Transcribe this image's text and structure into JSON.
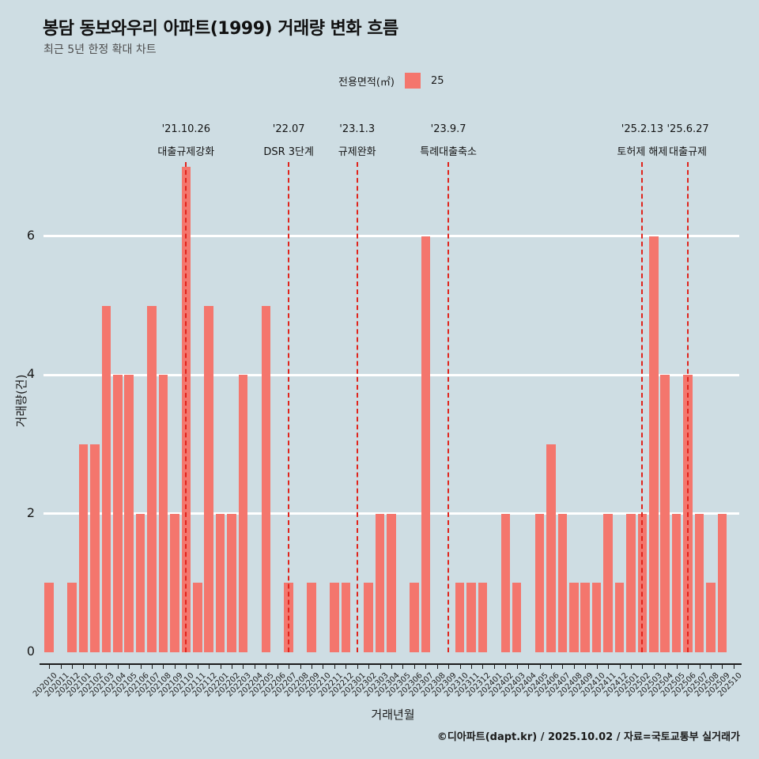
{
  "title": "봉담 동보와우리 아파트(1999) 거래량 변화 흐름",
  "subtitle": "최근 5년 한정 확대 차트",
  "legend": {
    "title": "전용면적(㎡)",
    "items": [
      {
        "label": "25",
        "color": "#f4766d"
      }
    ]
  },
  "footer": "©디아파트(dapt.kr) / 2025.10.02 / 자료=국토교통부 실거래가",
  "colors": {
    "background": "#cedde3",
    "bar": "#f4766d",
    "grid": "#ffffff",
    "annotation_line": "#e0241c",
    "axis": "#1c1c1c"
  },
  "chart_data": {
    "type": "bar",
    "title": "봉담 동보와우리 아파트(1999) 거래량 변화 흐름",
    "xlabel": "거래년월",
    "ylabel": "거래량(건)",
    "ylim": [
      0,
      7.1
    ],
    "yticks": [
      0,
      2,
      4,
      6
    ],
    "grid": true,
    "legend_position": "top",
    "series_name": "25",
    "categories": [
      "202010",
      "202011",
      "202012",
      "202101",
      "202102",
      "202103",
      "202104",
      "202105",
      "202106",
      "202107",
      "202108",
      "202109",
      "202110",
      "202111",
      "202112",
      "202201",
      "202202",
      "202203",
      "202204",
      "202205",
      "202206",
      "202207",
      "202208",
      "202209",
      "202210",
      "202211",
      "202212",
      "202301",
      "202302",
      "202303",
      "202304",
      "202305",
      "202306",
      "202307",
      "202308",
      "202309",
      "202310",
      "202311",
      "202312",
      "202401",
      "202402",
      "202403",
      "202404",
      "202405",
      "202406",
      "202407",
      "202408",
      "202409",
      "202410",
      "202411",
      "202412",
      "202501",
      "202502",
      "202503",
      "202504",
      "202505",
      "202506",
      "202507",
      "202508",
      "202509",
      "202510"
    ],
    "values": [
      1,
      0,
      1,
      3,
      3,
      5,
      4,
      4,
      2,
      5,
      4,
      2,
      7,
      1,
      5,
      2,
      2,
      4,
      0,
      5,
      0,
      1,
      0,
      1,
      0,
      1,
      1,
      0,
      1,
      2,
      2,
      0,
      1,
      6,
      0,
      0,
      1,
      1,
      1,
      0,
      2,
      1,
      0,
      2,
      3,
      2,
      1,
      1,
      1,
      2,
      1,
      2,
      2,
      6,
      4,
      2,
      4,
      2,
      1,
      2,
      0
    ],
    "annotations": [
      {
        "month": "202110",
        "date": "'21.10.26",
        "label": "대출규제강화"
      },
      {
        "month": "202207",
        "date": "'22.07",
        "label": "DSR 3단계"
      },
      {
        "month": "202301",
        "date": "'23.1.3",
        "label": "규제완화"
      },
      {
        "month": "202309",
        "date": "'23.9.7",
        "label": "특례대출축소"
      },
      {
        "month": "202502",
        "date": "'25.2.13",
        "label": "토허제 해제"
      },
      {
        "month": "202506",
        "date": "'25.6.27",
        "label": "대출규제"
      }
    ]
  }
}
